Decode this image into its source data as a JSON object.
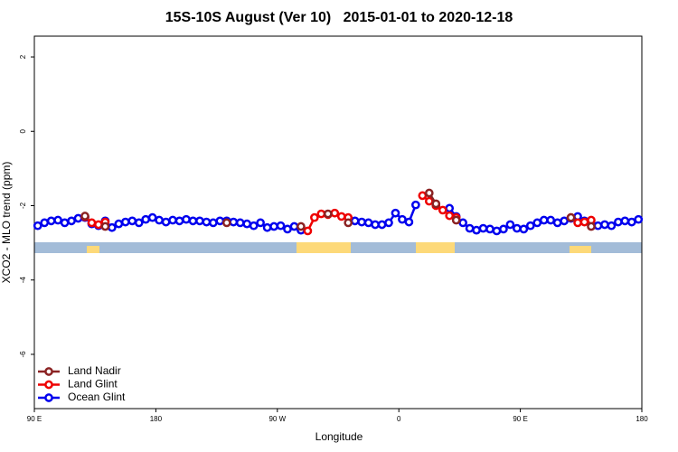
{
  "chart_data": {
    "type": "line",
    "title": "15S-10S August (Ver 10)   2015-01-01 to 2020-12-18",
    "x_label": "Longitude",
    "y_label": "XCO2 - MLO trend (ppm)",
    "xlim": [
      90,
      540
    ],
    "ylim": [
      -7.46,
      2.56
    ],
    "xticks": [
      {
        "value": 90,
        "label": "90 E"
      },
      180,
      {
        "value": 270,
        "label": "90 W"
      },
      {
        "value": 360,
        "label": "0"
      },
      {
        "value": 450,
        "label": "90 E"
      },
      {
        "value": 540,
        "label": "180"
      }
    ],
    "yticks": [
      2,
      0,
      -2,
      -4,
      -6
    ],
    "legend": "bottom-left",
    "x": [
      92.5,
      97.5,
      102.5,
      107.5,
      112.5,
      117.5,
      122.5,
      127.5,
      132.5,
      137.5,
      142.5,
      147.5,
      152.5,
      157.5,
      162.5,
      167.5,
      172.5,
      177.5,
      182.5,
      187.5,
      192.5,
      197.5,
      202.5,
      207.5,
      212.5,
      217.5,
      222.5,
      227.5,
      232.5,
      237.5,
      242.5,
      247.5,
      252.5,
      257.5,
      262.5,
      267.5,
      272.5,
      277.5,
      282.5,
      287.5,
      292.5,
      297.5,
      302.5,
      307.5,
      312.5,
      317.5,
      322.5,
      327.5,
      332.5,
      337.5,
      342.5,
      347.5,
      352.5,
      357.5,
      362.5,
      367.5,
      372.5,
      377.5,
      382.5,
      387.5,
      392.5,
      397.5,
      402.5,
      407.5,
      412.5,
      417.5,
      422.5,
      427.5,
      432.5,
      437.5,
      442.5,
      447.5,
      452.5,
      457.5,
      462.5,
      467.5,
      472.5,
      477.5,
      482.5,
      487.5,
      492.5,
      497.5,
      502.5,
      507.5,
      512.5,
      517.5,
      522.5,
      527.5,
      532.5,
      537.5
    ],
    "series": [
      {
        "name": "Ocean Glint",
        "color": "#0000ee",
        "values": [
          -2.54,
          -2.46,
          -2.41,
          -2.39,
          -2.46,
          -2.41,
          -2.34,
          -2.32,
          -2.49,
          -2.54,
          -2.41,
          -2.59,
          -2.49,
          -2.44,
          -2.41,
          -2.46,
          -2.37,
          -2.32,
          -2.39,
          -2.44,
          -2.39,
          -2.41,
          -2.37,
          -2.41,
          -2.41,
          -2.44,
          -2.46,
          -2.41,
          -2.41,
          -2.44,
          -2.46,
          -2.49,
          -2.54,
          -2.46,
          -2.59,
          -2.56,
          -2.54,
          -2.63,
          -2.56,
          -2.66,
          null,
          null,
          null,
          null,
          null,
          null,
          null,
          -2.41,
          -2.44,
          -2.46,
          -2.51,
          -2.51,
          -2.46,
          -2.2,
          -2.37,
          -2.44,
          -1.98,
          null,
          null,
          null,
          null,
          -2.07,
          -2.29,
          -2.46,
          -2.61,
          -2.66,
          -2.61,
          -2.63,
          -2.68,
          -2.63,
          -2.51,
          -2.61,
          -2.63,
          -2.54,
          -2.46,
          -2.39,
          -2.39,
          -2.46,
          -2.41,
          -2.34,
          -2.29,
          -2.41,
          -2.49,
          -2.54,
          -2.51,
          -2.54,
          -2.44,
          -2.41,
          -2.44,
          -2.37
        ]
      },
      {
        "name": "Land Glint",
        "color": "#ee0000",
        "values": [
          null,
          null,
          null,
          null,
          null,
          null,
          null,
          -2.3,
          -2.46,
          -2.51,
          -2.44,
          null,
          null,
          null,
          null,
          null,
          null,
          null,
          null,
          null,
          null,
          null,
          null,
          null,
          null,
          null,
          null,
          null,
          null,
          null,
          null,
          null,
          null,
          null,
          null,
          null,
          null,
          null,
          null,
          null,
          -2.68,
          -2.32,
          -2.22,
          -2.24,
          -2.2,
          -2.29,
          -2.32,
          null,
          null,
          null,
          null,
          null,
          null,
          null,
          null,
          null,
          null,
          -1.73,
          -1.88,
          -2.0,
          -2.12,
          -2.27,
          -2.32,
          null,
          null,
          null,
          null,
          null,
          null,
          null,
          null,
          null,
          null,
          null,
          null,
          null,
          null,
          null,
          null,
          -2.32,
          -2.46,
          -2.44,
          -2.39,
          null,
          null,
          null,
          null,
          null,
          null,
          null
        ]
      },
      {
        "name": "Land Nadir",
        "color": "#8b2323",
        "values": [
          null,
          null,
          null,
          null,
          null,
          null,
          null,
          -2.28,
          null,
          null,
          -2.56,
          null,
          null,
          null,
          null,
          null,
          null,
          null,
          null,
          null,
          null,
          null,
          null,
          null,
          null,
          null,
          null,
          null,
          -2.46,
          null,
          null,
          null,
          null,
          null,
          null,
          null,
          null,
          null,
          null,
          -2.56,
          null,
          null,
          null,
          -2.22,
          null,
          null,
          -2.46,
          null,
          null,
          null,
          null,
          null,
          null,
          null,
          null,
          null,
          null,
          null,
          -1.66,
          -1.95,
          null,
          null,
          -2.39,
          null,
          null,
          null,
          null,
          null,
          null,
          null,
          null,
          null,
          null,
          null,
          null,
          null,
          null,
          null,
          null,
          -2.32,
          null,
          null,
          -2.56,
          null,
          null,
          null,
          null,
          null,
          null,
          null
        ]
      }
    ]
  }
}
